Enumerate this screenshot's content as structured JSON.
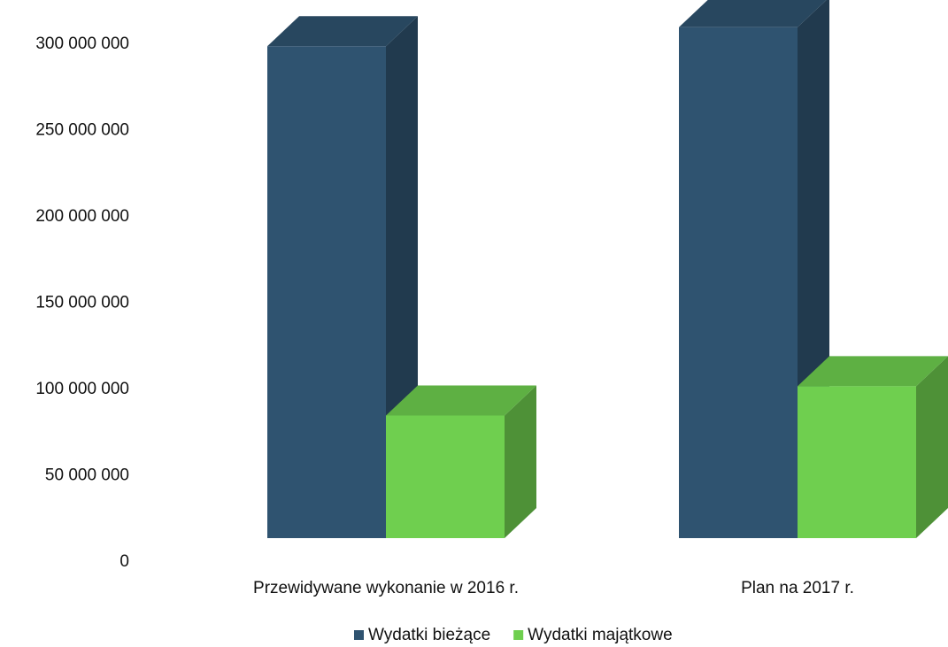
{
  "chart_data": {
    "type": "bar3d",
    "categories": [
      "Przewidywane wykonanie w 2016 r.",
      "Plan na 2017 r."
    ],
    "series": [
      {
        "name": "Wydatki bieżące",
        "color": "#2f5370",
        "values": [
          285000000,
          296000000
        ]
      },
      {
        "name": "Wydatki majątkowe",
        "color": "#6fcf4f",
        "values": [
          71000000,
          88000000
        ]
      }
    ],
    "ylim": [
      0,
      300000000
    ],
    "yticks": [
      {
        "value": 0,
        "label": "0"
      },
      {
        "value": 50000000,
        "label": "50 000 000"
      },
      {
        "value": 100000000,
        "label": "100 000 000"
      },
      {
        "value": 150000000,
        "label": "150 000 000"
      },
      {
        "value": 200000000,
        "label": "200 000 000"
      },
      {
        "value": 250000000,
        "label": "250 000 000"
      },
      {
        "value": 300000000,
        "label": "300 000 000"
      }
    ],
    "grid": false,
    "legend": "bottom"
  }
}
